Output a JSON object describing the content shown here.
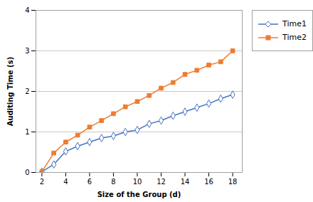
{
  "chart_data": {
    "type": "line",
    "xlabel": "Size of the Group (d)",
    "ylabel": "Auditing Time (s)",
    "x": [
      2,
      3,
      4,
      5,
      6,
      7,
      8,
      9,
      10,
      11,
      12,
      13,
      14,
      15,
      16,
      17,
      18
    ],
    "series": [
      {
        "name": "Time1",
        "color": "#4472C4",
        "marker": "diamond",
        "values": [
          0.02,
          0.2,
          0.52,
          0.65,
          0.75,
          0.85,
          0.9,
          1.0,
          1.05,
          1.2,
          1.28,
          1.4,
          1.5,
          1.6,
          1.7,
          1.82,
          1.92
        ]
      },
      {
        "name": "Time2",
        "color": "#ED7D31",
        "marker": "square",
        "values": [
          0.02,
          0.48,
          0.75,
          0.92,
          1.12,
          1.28,
          1.45,
          1.62,
          1.75,
          1.9,
          2.08,
          2.22,
          2.42,
          2.52,
          2.65,
          2.73,
          3.0
        ]
      }
    ],
    "xlim": [
      1.5,
      18.8
    ],
    "ylim": [
      0,
      4
    ],
    "xticks": [
      2,
      4,
      6,
      8,
      10,
      12,
      14,
      16,
      18
    ],
    "yticks": [
      0,
      1,
      2,
      3,
      4
    ],
    "grid": "y",
    "legend": "right"
  }
}
